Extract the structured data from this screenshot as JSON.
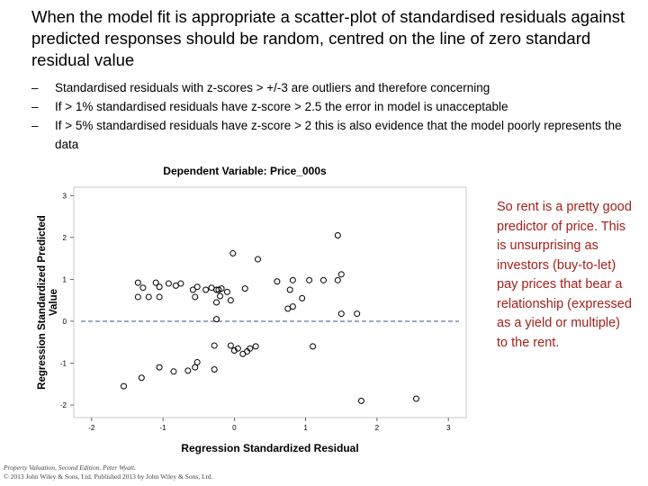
{
  "slide": {
    "heading": "When the model fit is appropriate a scatter-plot of standardised residuals against predicted responses should be random, centred on the line of zero standard residual value",
    "bullets": [
      {
        "dash": "–",
        "text": "Standardised residuals with z-scores > +/-3 are outliers and therefore concerning"
      },
      {
        "dash": "–",
        "text": "If > 1% standardised residuals have z-score > 2.5 the error in model is unacceptable"
      },
      {
        "dash": "–",
        "text": "If > 5% standardised residuals have z-score > 2 this is also evidence that the model poorly represents the data"
      }
    ],
    "side_note": "So rent is a pretty good predictor of price. This is unsurprising as investors (buy-to-let) pay prices that bear a relationship (expressed as a yield or multiple) to the rent.",
    "caption_title": "Property Valuation, Second Edition. Peter Wyatt.",
    "caption_copyright": "© 2013 John Wiley & Sons, Ltd. Published 2013 by John Wiley & Sons, Ltd."
  },
  "colors": {
    "side_note": "#a5211a",
    "reference_line": "#3a4f8a",
    "points": "#000000"
  },
  "chart_data": {
    "type": "scatter",
    "title": "Dependent Variable: Price_000s",
    "xlabel": "Regression Standardized Residual",
    "ylabel": "Regression Standardized Predicted Value",
    "xlim": [
      -2.25,
      3.25
    ],
    "ylim": [
      -2.3,
      3.2
    ],
    "x_ticks": [
      "-2",
      "-1",
      "0",
      "1",
      "2",
      "3"
    ],
    "y_ticks": [
      "-2",
      "-1",
      "0",
      "1",
      "2",
      "3"
    ],
    "reference_line": {
      "y": 0,
      "style": "dashed"
    },
    "grid": false,
    "marker": "open-circle",
    "points": [
      {
        "x": 1.45,
        "y": 2.05
      },
      {
        "x": -0.02,
        "y": 1.62
      },
      {
        "x": 0.33,
        "y": 1.48
      },
      {
        "x": 1.5,
        "y": 1.12
      },
      {
        "x": 0.6,
        "y": 0.95
      },
      {
        "x": 0.82,
        "y": 0.98
      },
      {
        "x": 1.05,
        "y": 0.98
      },
      {
        "x": 1.25,
        "y": 0.98
      },
      {
        "x": 1.45,
        "y": 0.98
      },
      {
        "x": 0.78,
        "y": 0.75
      },
      {
        "x": -1.35,
        "y": 0.58
      },
      {
        "x": -1.2,
        "y": 0.58
      },
      {
        "x": -1.05,
        "y": 0.58
      },
      {
        "x": -0.55,
        "y": 0.58
      },
      {
        "x": -1.35,
        "y": 0.92
      },
      {
        "x": -1.28,
        "y": 0.8
      },
      {
        "x": -1.1,
        "y": 0.92
      },
      {
        "x": -1.05,
        "y": 0.82
      },
      {
        "x": -0.92,
        "y": 0.9
      },
      {
        "x": -0.82,
        "y": 0.85
      },
      {
        "x": -0.75,
        "y": 0.9
      },
      {
        "x": -0.58,
        "y": 0.75
      },
      {
        "x": -0.52,
        "y": 0.82
      },
      {
        "x": -0.4,
        "y": 0.75
      },
      {
        "x": -0.32,
        "y": 0.8
      },
      {
        "x": -0.25,
        "y": 0.75
      },
      {
        "x": -0.22,
        "y": 0.75
      },
      {
        "x": -0.18,
        "y": 0.78
      },
      {
        "x": -0.1,
        "y": 0.7
      },
      {
        "x": -0.05,
        "y": 0.5
      },
      {
        "x": -0.2,
        "y": 0.6
      },
      {
        "x": -0.25,
        "y": 0.45
      },
      {
        "x": 0.15,
        "y": 0.78
      },
      {
        "x": 0.95,
        "y": 0.55
      },
      {
        "x": 0.75,
        "y": 0.3
      },
      {
        "x": 0.82,
        "y": 0.35
      },
      {
        "x": 1.5,
        "y": 0.18
      },
      {
        "x": 1.72,
        "y": 0.18
      },
      {
        "x": -0.25,
        "y": 0.05
      },
      {
        "x": -0.28,
        "y": -0.58
      },
      {
        "x": -0.05,
        "y": -0.58
      },
      {
        "x": 0.0,
        "y": -0.7
      },
      {
        "x": 0.05,
        "y": -0.65
      },
      {
        "x": 0.12,
        "y": -0.78
      },
      {
        "x": 0.18,
        "y": -0.72
      },
      {
        "x": 0.22,
        "y": -0.65
      },
      {
        "x": 0.3,
        "y": -0.6
      },
      {
        "x": 1.1,
        "y": -0.6
      },
      {
        "x": -0.52,
        "y": -0.98
      },
      {
        "x": -0.55,
        "y": -1.1
      },
      {
        "x": -0.65,
        "y": -1.18
      },
      {
        "x": -0.85,
        "y": -1.2
      },
      {
        "x": -1.05,
        "y": -1.1
      },
      {
        "x": -0.28,
        "y": -1.15
      },
      {
        "x": -1.3,
        "y": -1.35
      },
      {
        "x": -1.55,
        "y": -1.55
      },
      {
        "x": 1.78,
        "y": -1.9
      },
      {
        "x": 2.55,
        "y": -1.85
      }
    ]
  }
}
